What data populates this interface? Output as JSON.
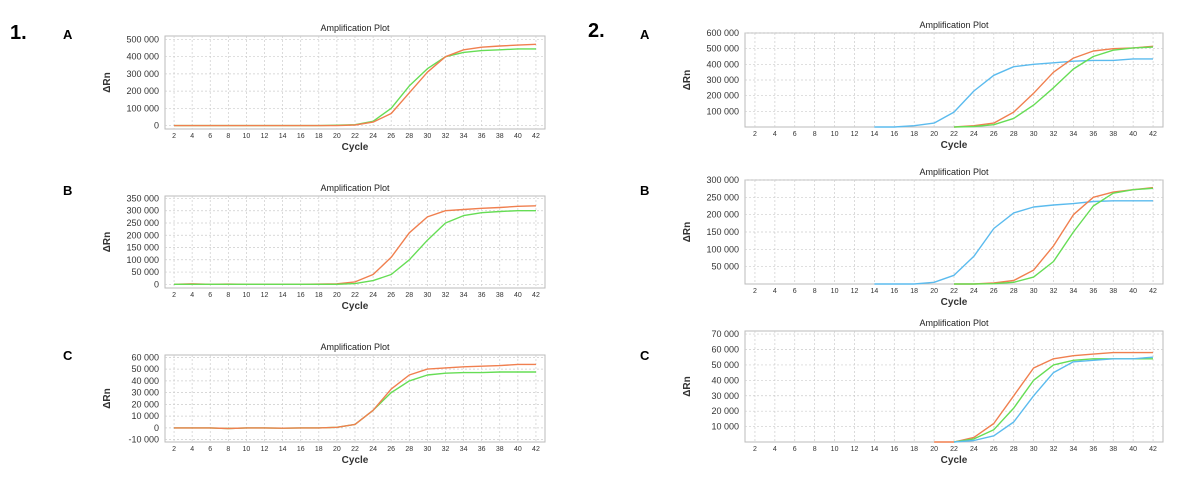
{
  "figure_labels": {
    "group1": "1.",
    "group2": "2.",
    "A": "A",
    "B": "B",
    "C": "C"
  },
  "colors": {
    "orange": "#f07f4f",
    "green": "#66dd55",
    "blue": "#5bbbee",
    "grid": "#cccccc"
  },
  "chart_data": [
    {
      "id": "1A",
      "type": "line",
      "title": "Amplification Plot",
      "xlabel": "Cycle",
      "ylabel": "ΔRn",
      "xlim": [
        1,
        43
      ],
      "ylim": [
        -20000,
        520000
      ],
      "xticks": [
        2,
        4,
        6,
        8,
        10,
        12,
        14,
        16,
        18,
        20,
        22,
        24,
        26,
        28,
        30,
        32,
        34,
        36,
        38,
        40,
        42
      ],
      "yticks": [
        0,
        100000,
        200000,
        300000,
        400000,
        500000
      ],
      "yticklabels": [
        "0",
        "100 000",
        "200 000",
        "300 000",
        "400 000",
        "500 000"
      ],
      "x": [
        2,
        4,
        6,
        8,
        10,
        12,
        14,
        16,
        18,
        20,
        22,
        24,
        26,
        28,
        30,
        32,
        34,
        36,
        38,
        40,
        42
      ],
      "series": [
        {
          "name": "green",
          "color": "green",
          "values": [
            0,
            0,
            0,
            0,
            0,
            0,
            0,
            0,
            0,
            2000,
            5000,
            25000,
            100000,
            230000,
            330000,
            400000,
            425000,
            435000,
            440000,
            445000,
            445000
          ]
        },
        {
          "name": "orange",
          "color": "orange",
          "values": [
            0,
            0,
            0,
            0,
            0,
            0,
            0,
            0,
            0,
            0,
            3000,
            20000,
            70000,
            190000,
            310000,
            400000,
            440000,
            455000,
            462000,
            467000,
            472000
          ]
        }
      ]
    },
    {
      "id": "1B",
      "type": "line",
      "title": "Amplification Plot",
      "xlabel": "Cycle",
      "ylabel": "ΔRn",
      "xlim": [
        1,
        43
      ],
      "ylim": [
        -15000,
        360000
      ],
      "xticks": [
        2,
        4,
        6,
        8,
        10,
        12,
        14,
        16,
        18,
        20,
        22,
        24,
        26,
        28,
        30,
        32,
        34,
        36,
        38,
        40,
        42
      ],
      "yticks": [
        0,
        50000,
        100000,
        150000,
        200000,
        250000,
        300000,
        350000
      ],
      "yticklabels": [
        "0",
        "50 000",
        "100 000",
        "150 000",
        "200 000",
        "250 000",
        "300 000",
        "350 000"
      ],
      "x": [
        2,
        4,
        6,
        8,
        10,
        12,
        14,
        16,
        18,
        20,
        22,
        24,
        26,
        28,
        30,
        32,
        34,
        36,
        38,
        40,
        42
      ],
      "series": [
        {
          "name": "orange",
          "color": "orange",
          "values": [
            0,
            2000,
            0,
            1000,
            0,
            0,
            0,
            0,
            1000,
            2000,
            10000,
            40000,
            110000,
            210000,
            275000,
            300000,
            305000,
            310000,
            313000,
            318000,
            320000
          ]
        },
        {
          "name": "green",
          "color": "green",
          "values": [
            0,
            0,
            0,
            0,
            0,
            0,
            0,
            0,
            0,
            0,
            3000,
            15000,
            40000,
            100000,
            180000,
            250000,
            280000,
            292000,
            297000,
            300000,
            300000
          ]
        }
      ]
    },
    {
      "id": "1C",
      "type": "line",
      "title": "Amplification Plot",
      "xlabel": "Cycle",
      "ylabel": "ΔRn",
      "xlim": [
        1,
        43
      ],
      "ylim": [
        -12000,
        62000
      ],
      "xticks": [
        2,
        4,
        6,
        8,
        10,
        12,
        14,
        16,
        18,
        20,
        22,
        24,
        26,
        28,
        30,
        32,
        34,
        36,
        38,
        40,
        42
      ],
      "yticks": [
        -10000,
        0,
        10000,
        20000,
        30000,
        40000,
        50000,
        60000
      ],
      "yticklabels": [
        "-10 000",
        "0",
        "10 000",
        "20 000",
        "30 000",
        "40 000",
        "50 000",
        "60 000"
      ],
      "x": [
        2,
        4,
        6,
        8,
        10,
        12,
        14,
        16,
        18,
        20,
        22,
        24,
        26,
        28,
        30,
        32,
        34,
        36,
        38,
        40,
        42
      ],
      "series": [
        {
          "name": "green",
          "color": "green",
          "values": [
            0,
            0,
            0,
            -500,
            0,
            0,
            -300,
            0,
            0,
            500,
            3000,
            15000,
            30000,
            40000,
            45000,
            46500,
            47000,
            47000,
            47500,
            47500,
            47500
          ]
        },
        {
          "name": "orange",
          "color": "orange",
          "values": [
            0,
            0,
            0,
            -500,
            0,
            0,
            -300,
            0,
            0,
            500,
            3000,
            15000,
            33000,
            45000,
            50000,
            51000,
            52000,
            52500,
            53000,
            54000,
            54000
          ]
        }
      ]
    },
    {
      "id": "2A",
      "type": "line",
      "title": "Amplification Plot",
      "xlabel": "Cycle",
      "ylabel": "ΔRn",
      "xlim": [
        1,
        43
      ],
      "ylim": [
        0,
        600000
      ],
      "xticks": [
        2,
        4,
        6,
        8,
        10,
        12,
        14,
        16,
        18,
        20,
        22,
        24,
        26,
        28,
        30,
        32,
        34,
        36,
        38,
        40,
        42
      ],
      "yticks": [
        100000,
        200000,
        300000,
        400000,
        500000,
        600000
      ],
      "yticklabels": [
        "100 000",
        "200 000",
        "300 000",
        "400 000",
        "500 000",
        "600 000"
      ],
      "x": [
        2,
        4,
        6,
        8,
        10,
        12,
        14,
        16,
        18,
        20,
        22,
        24,
        26,
        28,
        30,
        32,
        34,
        36,
        38,
        40,
        42
      ],
      "series": [
        {
          "name": "blue",
          "color": "blue",
          "values": [
            null,
            null,
            null,
            null,
            null,
            null,
            0,
            0,
            8000,
            25000,
            95000,
            230000,
            330000,
            385000,
            400000,
            410000,
            420000,
            425000,
            425000,
            435000,
            435000
          ]
        },
        {
          "name": "orange",
          "color": "orange",
          "values": [
            null,
            null,
            null,
            null,
            null,
            null,
            null,
            null,
            null,
            null,
            0,
            8000,
            25000,
            95000,
            215000,
            350000,
            440000,
            485000,
            500000,
            505000,
            515000
          ]
        },
        {
          "name": "green",
          "color": "green",
          "values": [
            null,
            null,
            null,
            null,
            null,
            null,
            null,
            null,
            null,
            null,
            0,
            3000,
            15000,
            55000,
            140000,
            250000,
            370000,
            450000,
            490000,
            505000,
            510000
          ]
        }
      ]
    },
    {
      "id": "2B",
      "type": "line",
      "title": "Amplification Plot",
      "xlabel": "Cycle",
      "ylabel": "ΔRn",
      "xlim": [
        1,
        43
      ],
      "ylim": [
        0,
        300000
      ],
      "xticks": [
        2,
        4,
        6,
        8,
        10,
        12,
        14,
        16,
        18,
        20,
        22,
        24,
        26,
        28,
        30,
        32,
        34,
        36,
        38,
        40,
        42
      ],
      "yticks": [
        50000,
        100000,
        150000,
        200000,
        250000,
        300000
      ],
      "yticklabels": [
        "50 000",
        "100 000",
        "150 000",
        "200 000",
        "250 000",
        "300 000"
      ],
      "x": [
        2,
        4,
        6,
        8,
        10,
        12,
        14,
        16,
        18,
        20,
        22,
        24,
        26,
        28,
        30,
        32,
        34,
        36,
        38,
        40,
        42
      ],
      "series": [
        {
          "name": "blue",
          "color": "blue",
          "values": [
            null,
            null,
            null,
            null,
            null,
            null,
            0,
            0,
            0,
            5000,
            25000,
            80000,
            160000,
            205000,
            222000,
            228000,
            232000,
            238000,
            240000,
            240000,
            240000
          ]
        },
        {
          "name": "orange",
          "color": "orange",
          "values": [
            null,
            null,
            null,
            null,
            null,
            null,
            null,
            null,
            null,
            null,
            0,
            0,
            3000,
            10000,
            40000,
            110000,
            200000,
            250000,
            265000,
            272000,
            278000
          ]
        },
        {
          "name": "green",
          "color": "green",
          "values": [
            null,
            null,
            null,
            null,
            null,
            null,
            null,
            null,
            null,
            null,
            0,
            0,
            1000,
            5000,
            20000,
            65000,
            150000,
            225000,
            262000,
            272000,
            276000
          ]
        }
      ]
    },
    {
      "id": "2C",
      "type": "line",
      "title": "Amplification Plot",
      "xlabel": "Cycle",
      "ylabel": "ΔRn",
      "xlim": [
        1,
        43
      ],
      "ylim": [
        0,
        72000
      ],
      "xticks": [
        2,
        4,
        6,
        8,
        10,
        12,
        14,
        16,
        18,
        20,
        22,
        24,
        26,
        28,
        30,
        32,
        34,
        36,
        38,
        40,
        42
      ],
      "yticks": [
        10000,
        20000,
        30000,
        40000,
        50000,
        60000,
        70000
      ],
      "yticklabels": [
        "10 000",
        "20 000",
        "30 000",
        "40 000",
        "50 000",
        "60 000",
        "70 000"
      ],
      "x": [
        2,
        4,
        6,
        8,
        10,
        12,
        14,
        16,
        18,
        20,
        22,
        24,
        26,
        28,
        30,
        32,
        34,
        36,
        38,
        40,
        42
      ],
      "series": [
        {
          "name": "orange",
          "color": "orange",
          "values": [
            null,
            null,
            null,
            null,
            null,
            null,
            null,
            null,
            null,
            0,
            0,
            3000,
            12000,
            30000,
            48000,
            54000,
            56000,
            57000,
            58000,
            58000,
            58000
          ]
        },
        {
          "name": "green",
          "color": "green",
          "values": [
            null,
            null,
            null,
            null,
            null,
            null,
            null,
            null,
            null,
            null,
            0,
            2000,
            8000,
            22000,
            40000,
            50000,
            53000,
            54000,
            54000,
            54000,
            54000
          ]
        },
        {
          "name": "blue",
          "color": "blue",
          "values": [
            null,
            null,
            null,
            null,
            null,
            null,
            null,
            null,
            null,
            null,
            0,
            1000,
            4000,
            13000,
            30000,
            45000,
            52000,
            53000,
            54000,
            54000,
            55000
          ]
        }
      ]
    }
  ]
}
